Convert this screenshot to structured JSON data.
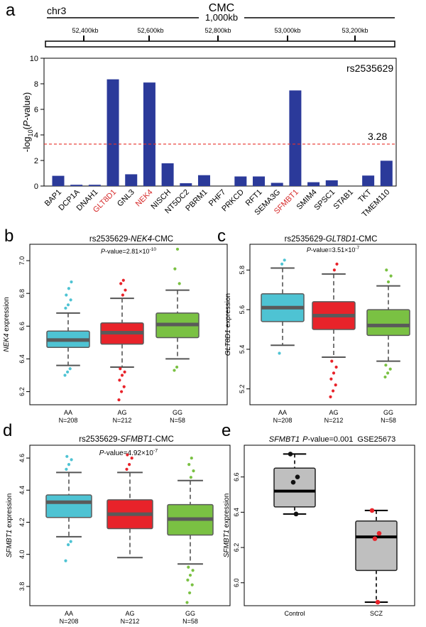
{
  "panel_letters": {
    "a": "a",
    "b": "b",
    "c": "c",
    "d": "d",
    "e": "e"
  },
  "colors": {
    "bar": "#2b3a9a",
    "threshold": "#e8302a",
    "highlight_label": "#d62a2a",
    "AA": "#4ec3d3",
    "AG": "#e8232a",
    "GG": "#7ac143",
    "median": "#5a5a5a",
    "whisker": "#555555",
    "gray_box": "#bfbfbf",
    "dot_black": "#111111",
    "dot_red": "#e8232a"
  },
  "panel_a": {
    "chromosome": "chr3",
    "dataset": "CMC",
    "scale_label": "1,000kb",
    "positions": [
      "52,400kb",
      "52,600kb",
      "52,800kb",
      "53,000kb",
      "53,200kb"
    ],
    "snp": "rs2535629",
    "threshold_label": "3.28",
    "ylabel_pre": "-log",
    "ylabel_sub": "10",
    "ylabel_open": "(",
    "ylabel_italic": "P",
    "ylabel_post": "-value)"
  },
  "panel_b": {
    "title_pre": "rs2535629-",
    "gene": "NEK4",
    "title_post": "-CMC",
    "p_italic": "P",
    "p_rest": "-value=2.81×10",
    "p_exp": "-10",
    "ylabel_gene": "NEK4",
    "ylabel_rest": " expression"
  },
  "panel_c": {
    "title_pre": "rs2535629-",
    "gene": "GLT8D1",
    "title_post": "-CMC",
    "p_italic": "P",
    "p_rest": "-value=3.51×10",
    "p_exp": "-7",
    "ylabel_gene": "GLT8D1",
    "ylabel_rest": " expression"
  },
  "panel_d": {
    "title_pre": "rs2535629-",
    "gene": "SFMBT1",
    "title_post": "-CMC",
    "p_italic": "P",
    "p_rest": "-value=4.92×10",
    "p_exp": "-7",
    "ylabel_gene": "SFMBT1",
    "ylabel_rest": " expression"
  },
  "panel_e": {
    "gene": "SFMBT1",
    "p_italic": "P",
    "p_rest": "-value=0.001",
    "dataset": "GSE25673",
    "ylabel_gene": "SFMBT1",
    "ylabel_rest": " expression"
  },
  "chart_data": [
    {
      "id": "a",
      "type": "bar",
      "title": "CMC",
      "ylabel": "-log10(P-value)",
      "ylim": [
        0,
        10
      ],
      "yticks": [
        0,
        2,
        4,
        6,
        8,
        10
      ],
      "categories": [
        "BAP1",
        "DCP1A",
        "DNAH1",
        "GLT8D1",
        "GNL3",
        "NEK4",
        "NISCH",
        "NT5DC2",
        "PBRM1",
        "PHF7",
        "PRKCD",
        "RFT1",
        "SEMA3G",
        "SFMBT1",
        "SMIM4",
        "SPSC1",
        "STAB1",
        "TKT",
        "TMEM110"
      ],
      "values": [
        0.8,
        0.1,
        0.1,
        8.35,
        0.92,
        8.1,
        1.78,
        0.22,
        0.85,
        0.0,
        0.75,
        0.75,
        0.25,
        7.48,
        0.3,
        0.45,
        0.0,
        0.82,
        1.98
      ],
      "highlighted": [
        "GLT8D1",
        "NEK4",
        "SFMBT1"
      ],
      "threshold": 3.28,
      "annotation": "rs2535629"
    },
    {
      "id": "b",
      "type": "boxplot",
      "title": "rs2535629-NEK4-CMC",
      "ylabel": "NEK4 expression",
      "ylim": [
        6.12,
        7.1
      ],
      "yticks": [
        6.2,
        6.4,
        6.6,
        6.8,
        7.0
      ],
      "groups": [
        {
          "name": "AA",
          "n": "N=208",
          "q1": 6.47,
          "median": 6.515,
          "q3": 6.57,
          "whisker_low": 6.36,
          "whisker_high": 6.68,
          "outliers": [
            6.3,
            6.32,
            6.34,
            6.71,
            6.73,
            6.76,
            6.79,
            6.83,
            6.87
          ]
        },
        {
          "name": "AG",
          "n": "N=212",
          "q1": 6.49,
          "median": 6.56,
          "q3": 6.62,
          "whisker_low": 6.35,
          "whisker_high": 6.77,
          "outliers": [
            6.15,
            6.2,
            6.23,
            6.27,
            6.3,
            6.32,
            6.34,
            6.79,
            6.82,
            6.86,
            6.88
          ]
        },
        {
          "name": "GG",
          "n": "N=58",
          "q1": 6.53,
          "median": 6.61,
          "q3": 6.68,
          "whisker_low": 6.4,
          "whisker_high": 6.82,
          "outliers": [
            6.33,
            6.35,
            6.86,
            6.95,
            7.07
          ]
        }
      ]
    },
    {
      "id": "c",
      "type": "boxplot",
      "title": "rs2535629-GLT8D1-CMC",
      "ylabel": "GLT8D1 expression",
      "ylim": [
        5.12,
        5.93
      ],
      "yticks": [
        5.2,
        5.4,
        5.6,
        5.8
      ],
      "groups": [
        {
          "name": "AA",
          "n": "N=208",
          "q1": 5.54,
          "median": 5.61,
          "q3": 5.68,
          "whisker_low": 5.42,
          "whisker_high": 5.81,
          "outliers": [
            5.38,
            5.83,
            5.85
          ]
        },
        {
          "name": "AG",
          "n": "N=212",
          "q1": 5.5,
          "median": 5.57,
          "q3": 5.64,
          "whisker_low": 5.36,
          "whisker_high": 5.78,
          "outliers": [
            5.16,
            5.19,
            5.22,
            5.25,
            5.28,
            5.31,
            5.34,
            5.8,
            5.83
          ]
        },
        {
          "name": "GG",
          "n": "N=58",
          "q1": 5.47,
          "median": 5.52,
          "q3": 5.6,
          "whisker_low": 5.34,
          "whisker_high": 5.72,
          "outliers": [
            5.26,
            5.28,
            5.3,
            5.32,
            5.74,
            5.77,
            5.8
          ]
        }
      ]
    },
    {
      "id": "d",
      "type": "boxplot",
      "title": "rs2535629-SFMBT1-CMC",
      "ylabel": "SFMBT1 expression",
      "ylim": [
        3.68,
        4.68
      ],
      "yticks": [
        3.8,
        4.0,
        4.2,
        4.4,
        4.6
      ],
      "groups": [
        {
          "name": "AA",
          "n": "N=208",
          "q1": 4.23,
          "median": 4.325,
          "q3": 4.37,
          "whisker_low": 4.11,
          "whisker_high": 4.51,
          "outliers": [
            3.96,
            4.06,
            4.08,
            4.53,
            4.56,
            4.59,
            4.61
          ]
        },
        {
          "name": "AG",
          "n": "N=212",
          "q1": 4.16,
          "median": 4.25,
          "q3": 4.34,
          "whisker_low": 3.98,
          "whisker_high": 4.51,
          "outliers": [
            4.53,
            4.56,
            4.6,
            4.62
          ]
        },
        {
          "name": "GG",
          "n": "N=58",
          "q1": 4.12,
          "median": 4.22,
          "q3": 4.31,
          "whisker_low": 3.94,
          "whisker_high": 4.46,
          "outliers": [
            3.7,
            3.76,
            3.81,
            3.84,
            3.87,
            3.9,
            3.92,
            4.48,
            4.52,
            4.56,
            4.6
          ]
        }
      ]
    },
    {
      "id": "e",
      "type": "boxplot",
      "title": "SFMBT1 P-value=0.001 GSE25673",
      "ylabel": "SFMBT1 expression",
      "ylim": [
        5.87,
        6.78
      ],
      "yticks": [
        6.0,
        6.2,
        6.4,
        6.6
      ],
      "groups": [
        {
          "name": "Control",
          "q1": 6.43,
          "median": 6.52,
          "q3": 6.65,
          "whisker_low": 6.39,
          "whisker_high": 6.73,
          "points": [
            6.73,
            6.6,
            6.57,
            6.39
          ]
        },
        {
          "name": "SCZ",
          "q1": 6.07,
          "median": 6.26,
          "q3": 6.35,
          "whisker_low": 5.89,
          "whisker_high": 6.41,
          "points": [
            6.41,
            6.28,
            6.25,
            5.89
          ]
        }
      ]
    }
  ]
}
